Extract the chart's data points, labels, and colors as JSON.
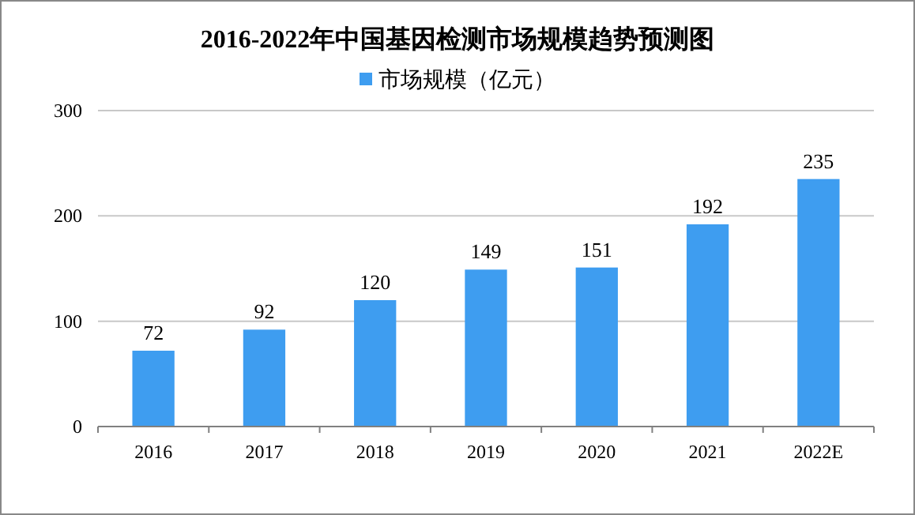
{
  "chart_data": {
    "type": "bar",
    "title": "2016-2022年中国基因检测市场规模趋势预测图",
    "categories": [
      "2016",
      "2017",
      "2018",
      "2019",
      "2020",
      "2021",
      "2022E"
    ],
    "series": [
      {
        "name": "市场规模（亿元）",
        "color": "#3e9df0",
        "values": [
          72,
          92,
          120,
          149,
          151,
          192,
          235
        ]
      }
    ],
    "ylim": [
      0,
      300
    ],
    "yticks": [
      0,
      100,
      200,
      300
    ],
    "grid": "y",
    "legend": "top",
    "data_labels": true
  }
}
